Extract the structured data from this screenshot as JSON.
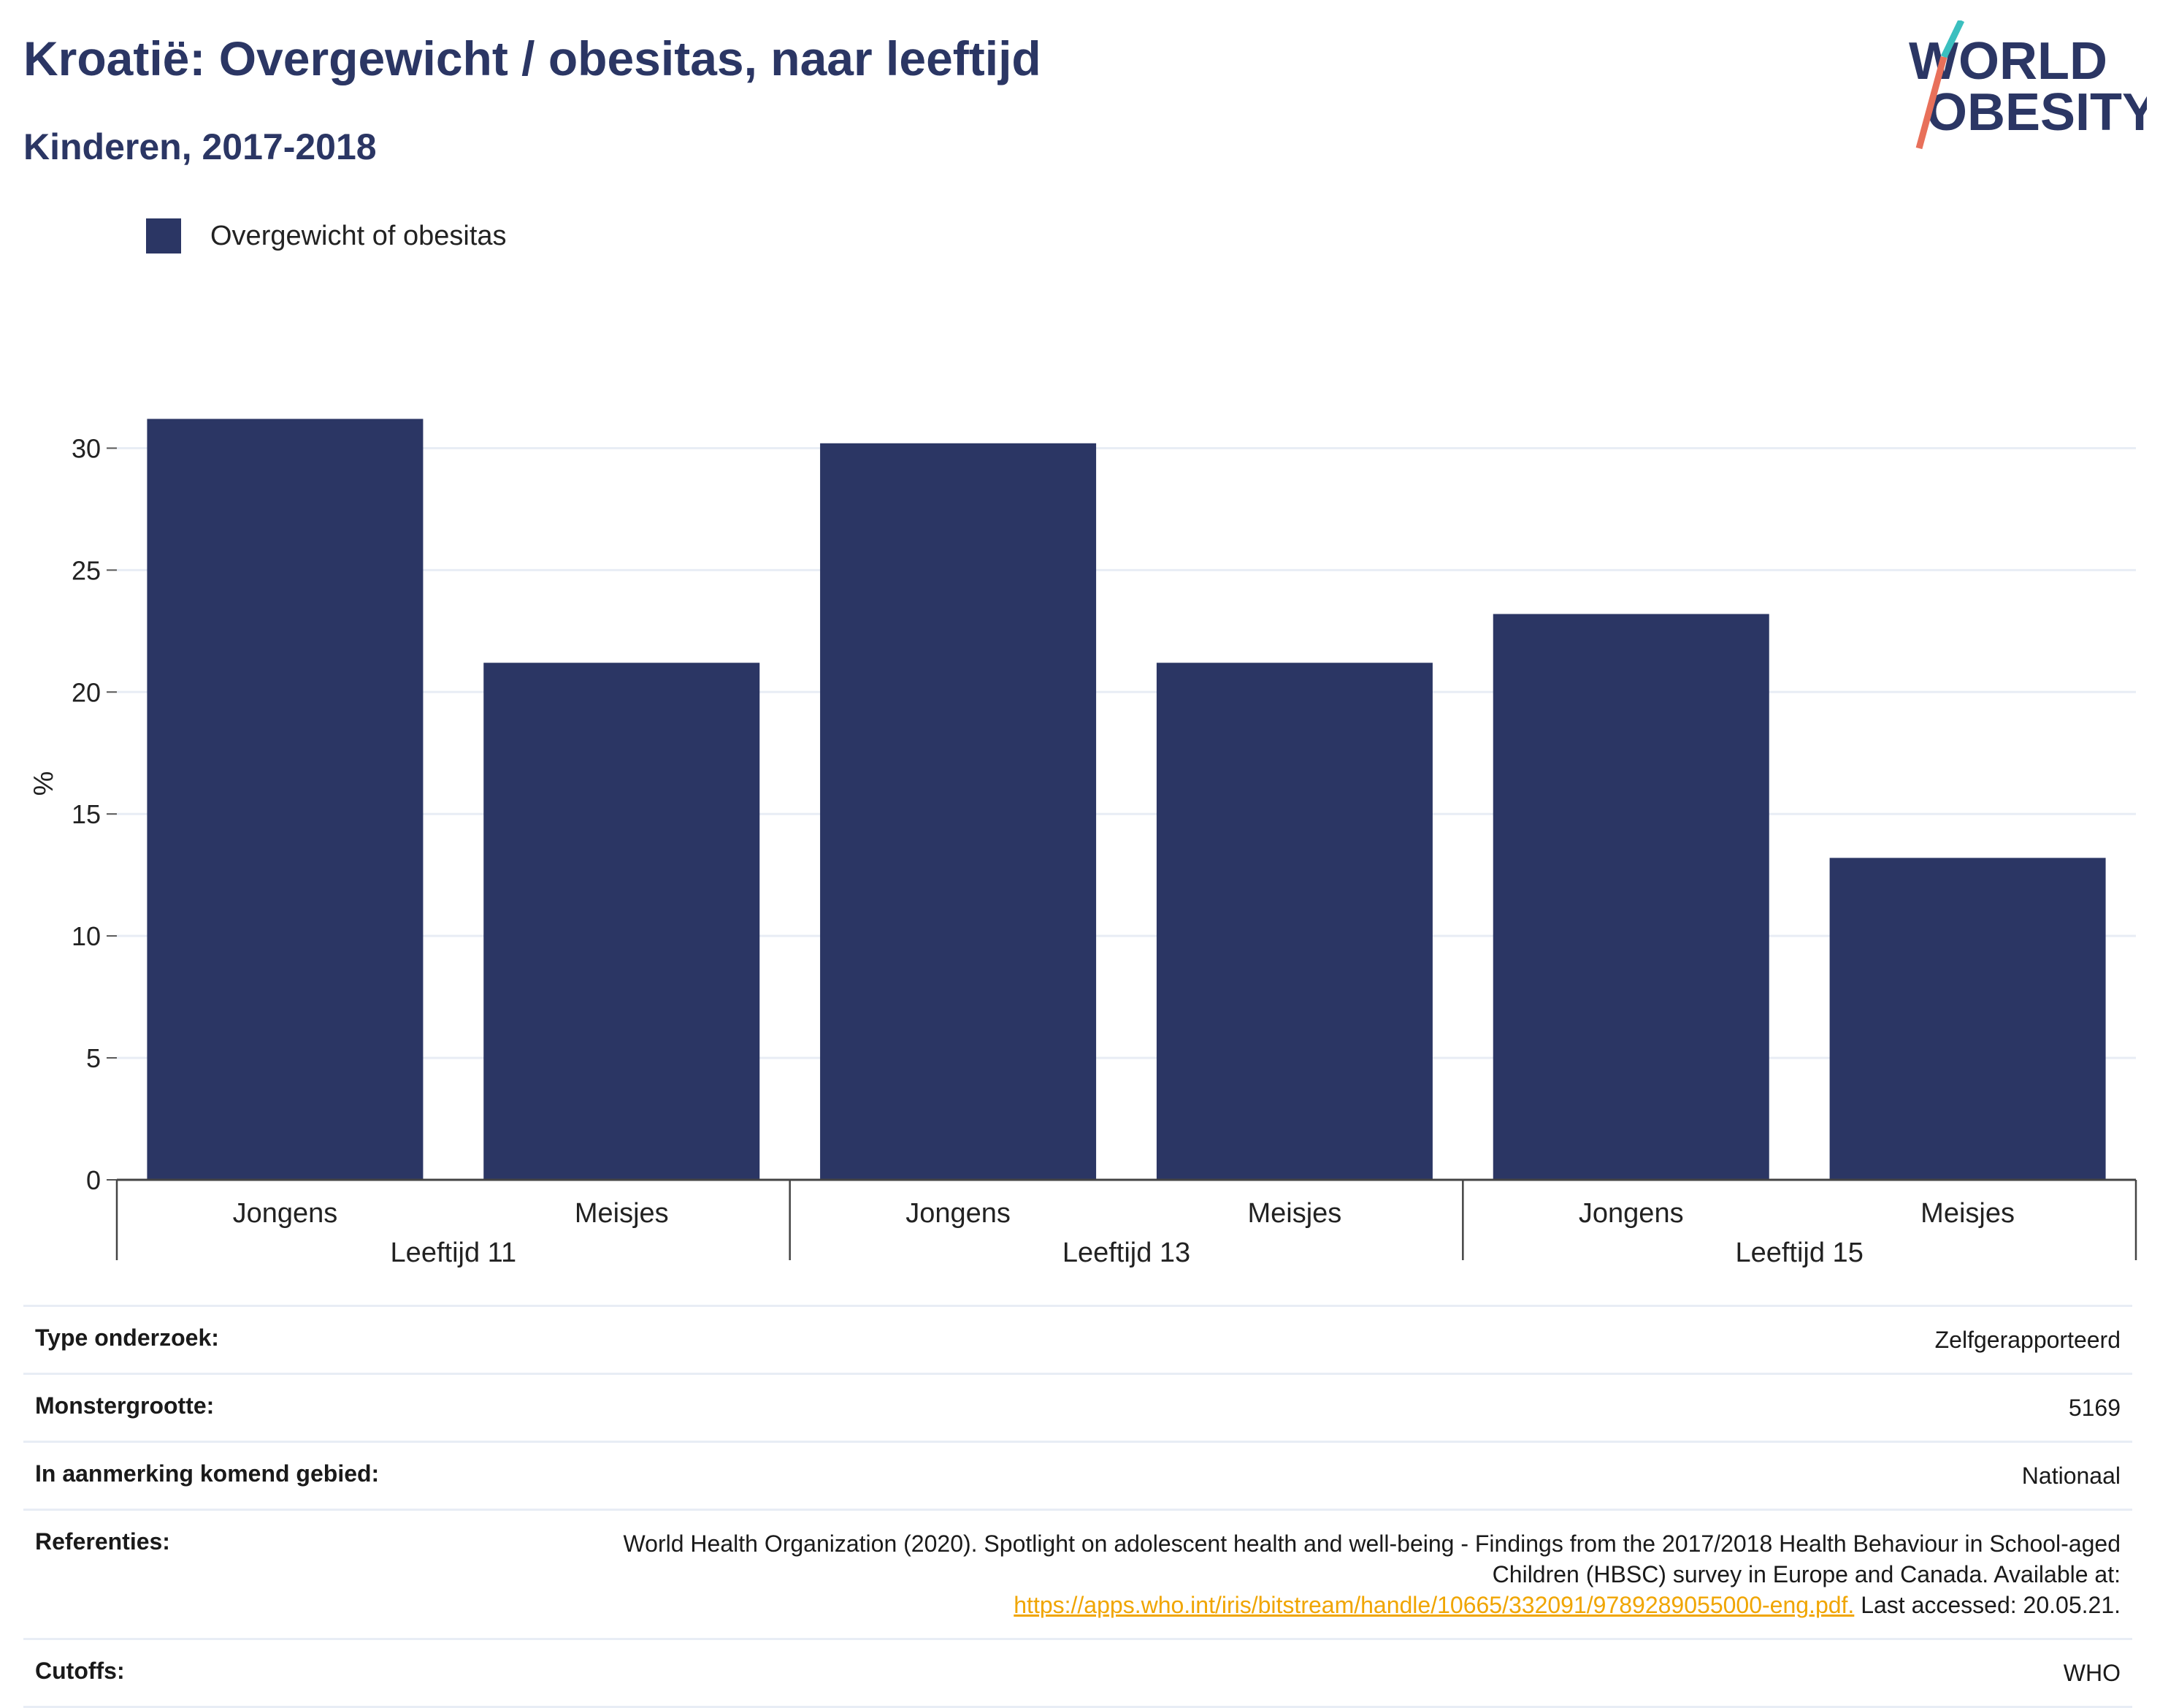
{
  "title": "Kroatië: Overgewicht / obesitas, naar leeftijd",
  "subtitle": "Kinderen, 2017-2018",
  "logo": {
    "line1": "WORLD",
    "line2": "OBESITY"
  },
  "legend": {
    "label": "Overgewicht of obesitas"
  },
  "chart_data": {
    "type": "bar",
    "ylabel": "%",
    "ylim": [
      0,
      32.5
    ],
    "yticks": [
      0,
      5,
      10,
      15,
      20,
      25,
      30
    ],
    "grid": true,
    "legend_position": "top-left",
    "bar_color": "#2b3664",
    "groups": [
      {
        "label": "Leeftijd 11",
        "categories": [
          "Jongens",
          "Meisjes"
        ],
        "values": [
          31.2,
          21.2
        ]
      },
      {
        "label": "Leeftijd 13",
        "categories": [
          "Jongens",
          "Meisjes"
        ],
        "values": [
          30.2,
          21.2
        ]
      },
      {
        "label": "Leeftijd 15",
        "categories": [
          "Jongens",
          "Meisjes"
        ],
        "values": [
          23.2,
          13.2
        ]
      }
    ],
    "series": [
      {
        "name": "Overgewicht of obesitas",
        "values": [
          31.2,
          21.2,
          30.2,
          21.2,
          23.2,
          13.2
        ]
      }
    ]
  },
  "info": {
    "survey_type": {
      "label": "Type onderzoek:",
      "value": "Zelfgerapporteerd"
    },
    "sample_size": {
      "label": "Monstergrootte:",
      "value": "5169"
    },
    "area": {
      "label": "In aanmerking komend gebied:",
      "value": "Nationaal"
    },
    "references": {
      "label": "Referenties:",
      "text": "World Health Organization (2020). Spotlight on adolescent health and well-being - Findings from the 2017/2018 Health Behaviour in School-aged Children (HBSC) survey in Europe and Canada. Available at:",
      "link": "https://apps.who.int/iris/bitstream/handle/10665/332091/9789289055000-eng.pdf.",
      "suffix": "Last accessed: 20.05.21."
    },
    "cutoffs": {
      "label": "Cutoffs:",
      "value": "WHO"
    }
  }
}
